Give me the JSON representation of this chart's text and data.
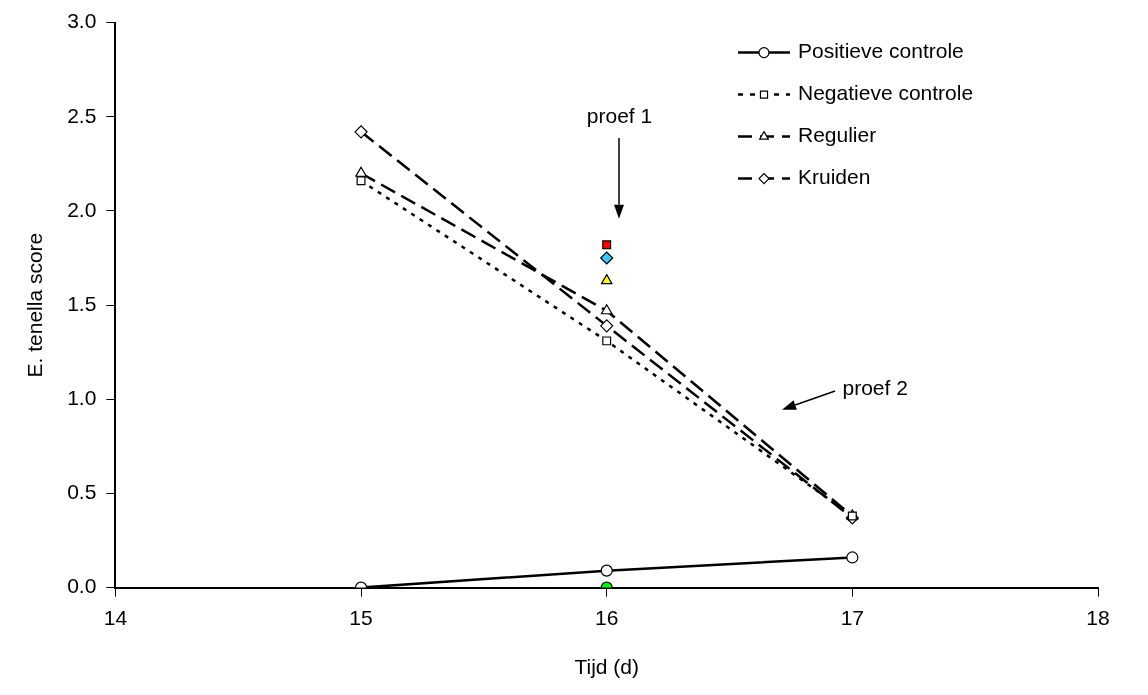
{
  "chart_data": {
    "type": "line",
    "xlabel": "Tijd (d)",
    "ylabel": "E. tenella score",
    "xlim": [
      14,
      18
    ],
    "xticks": [
      14,
      15,
      16,
      17,
      18
    ],
    "ylim": [
      0,
      3
    ],
    "yticks": [
      {
        "value": 0,
        "label": "0.0"
      },
      {
        "value": 0.5,
        "label": "0.5"
      },
      {
        "value": 1,
        "label": "1.0"
      },
      {
        "value": 1.5,
        "label": "1.5"
      },
      {
        "value": 2,
        "label": "2.0"
      },
      {
        "value": 2.5,
        "label": "2.5"
      },
      {
        "value": 3,
        "label": "3.0"
      }
    ],
    "grid": false,
    "legend": "top right",
    "series": [
      {
        "name": "Positieve controle",
        "type": "line",
        "color": "#000000",
        "marker": "circle",
        "line_style": "solid",
        "x": [
          15,
          16,
          17
        ],
        "values": [
          0,
          0.09,
          0.16
        ]
      },
      {
        "name": "Negatieve controle",
        "type": "line",
        "color": "#000000",
        "marker": "square",
        "line_style": "dotted",
        "x": [
          15,
          16,
          17
        ],
        "values": [
          2.16,
          1.31,
          0.38
        ]
      },
      {
        "name": "Regulier",
        "type": "line",
        "color": "#000000",
        "marker": "triangle",
        "line_style": "dashed",
        "x": [
          15,
          16,
          17
        ],
        "values": [
          2.2,
          1.47,
          0.38
        ]
      },
      {
        "name": "Kruiden",
        "type": "line",
        "color": "#000000",
        "marker": "diamond",
        "line_style": "dashed",
        "x": [
          15,
          16,
          17
        ],
        "values": [
          2.42,
          1.39,
          0.37
        ]
      },
      {
        "type": "scatter",
        "color": "#ff0000",
        "marker": "square",
        "x": [
          16
        ],
        "values": [
          1.82
        ]
      },
      {
        "type": "scatter",
        "color": "#33ccff",
        "marker": "diamond",
        "x": [
          16
        ],
        "values": [
          1.75
        ]
      },
      {
        "type": "scatter",
        "color": "#ffff00",
        "marker": "triangle",
        "x": [
          16
        ],
        "values": [
          1.63
        ]
      },
      {
        "type": "scatter",
        "color": "#00ff00",
        "marker": "circle",
        "x": [
          16
        ],
        "values": [
          0
        ]
      }
    ],
    "annotations": [
      "proef 1",
      "proef 2"
    ]
  }
}
